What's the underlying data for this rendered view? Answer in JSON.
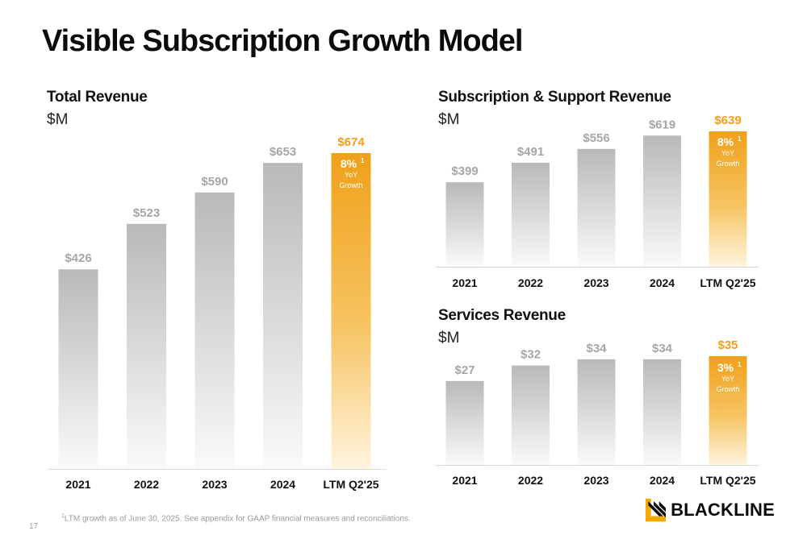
{
  "page": {
    "title": "Visible Subscription Growth Model",
    "page_number": "17",
    "footnote_marker": "1",
    "footnote_text": "LTM growth as of June 30, 2025. See appendix for GAAP financial measures and reconciliations.",
    "logo_text": "BLACKLINE"
  },
  "colors": {
    "bar_grey_top": "#b9b9b9",
    "bar_grey_bottom": "#fafafa",
    "bar_orange_top": "#f0a01a",
    "bar_orange_bottom": "#fff4de",
    "label_grey": "#a6a6a6",
    "label_orange": "#f0a01a",
    "axis_line": "#d9d9d9",
    "logo_gold": "#f2a900"
  },
  "chart_data": [
    {
      "type": "bar",
      "title": "Total Revenue",
      "unit": "$M",
      "categories": [
        "2021",
        "2022",
        "2023",
        "2024",
        "LTM Q2'25"
      ],
      "values": [
        426,
        523,
        590,
        653,
        674
      ],
      "value_labels": [
        "$426",
        "$523",
        "$590",
        "$653",
        "$674"
      ],
      "highlight_index": 4,
      "growth": {
        "value": "8%",
        "marker": "1",
        "line1": "YoY",
        "line2": "Growth"
      }
    },
    {
      "type": "bar",
      "title": "Subscription & Support Revenue",
      "unit": "$M",
      "categories": [
        "2021",
        "2022",
        "2023",
        "2024",
        "LTM Q2'25"
      ],
      "values": [
        399,
        491,
        556,
        619,
        639
      ],
      "value_labels": [
        "$399",
        "$491",
        "$556",
        "$619",
        "$639"
      ],
      "highlight_index": 4,
      "growth": {
        "value": "8%",
        "marker": "1",
        "line1": "YoY",
        "line2": "Growth"
      }
    },
    {
      "type": "bar",
      "title": "Services Revenue",
      "unit": "$M",
      "categories": [
        "2021",
        "2022",
        "2023",
        "2024",
        "LTM Q2'25"
      ],
      "values": [
        27,
        32,
        34,
        34,
        35
      ],
      "value_labels": [
        "$27",
        "$32",
        "$34",
        "$34",
        "$35"
      ],
      "highlight_index": 4,
      "growth": {
        "value": "3%",
        "marker": "1",
        "line1": "YoY",
        "line2": "Growth"
      }
    }
  ]
}
